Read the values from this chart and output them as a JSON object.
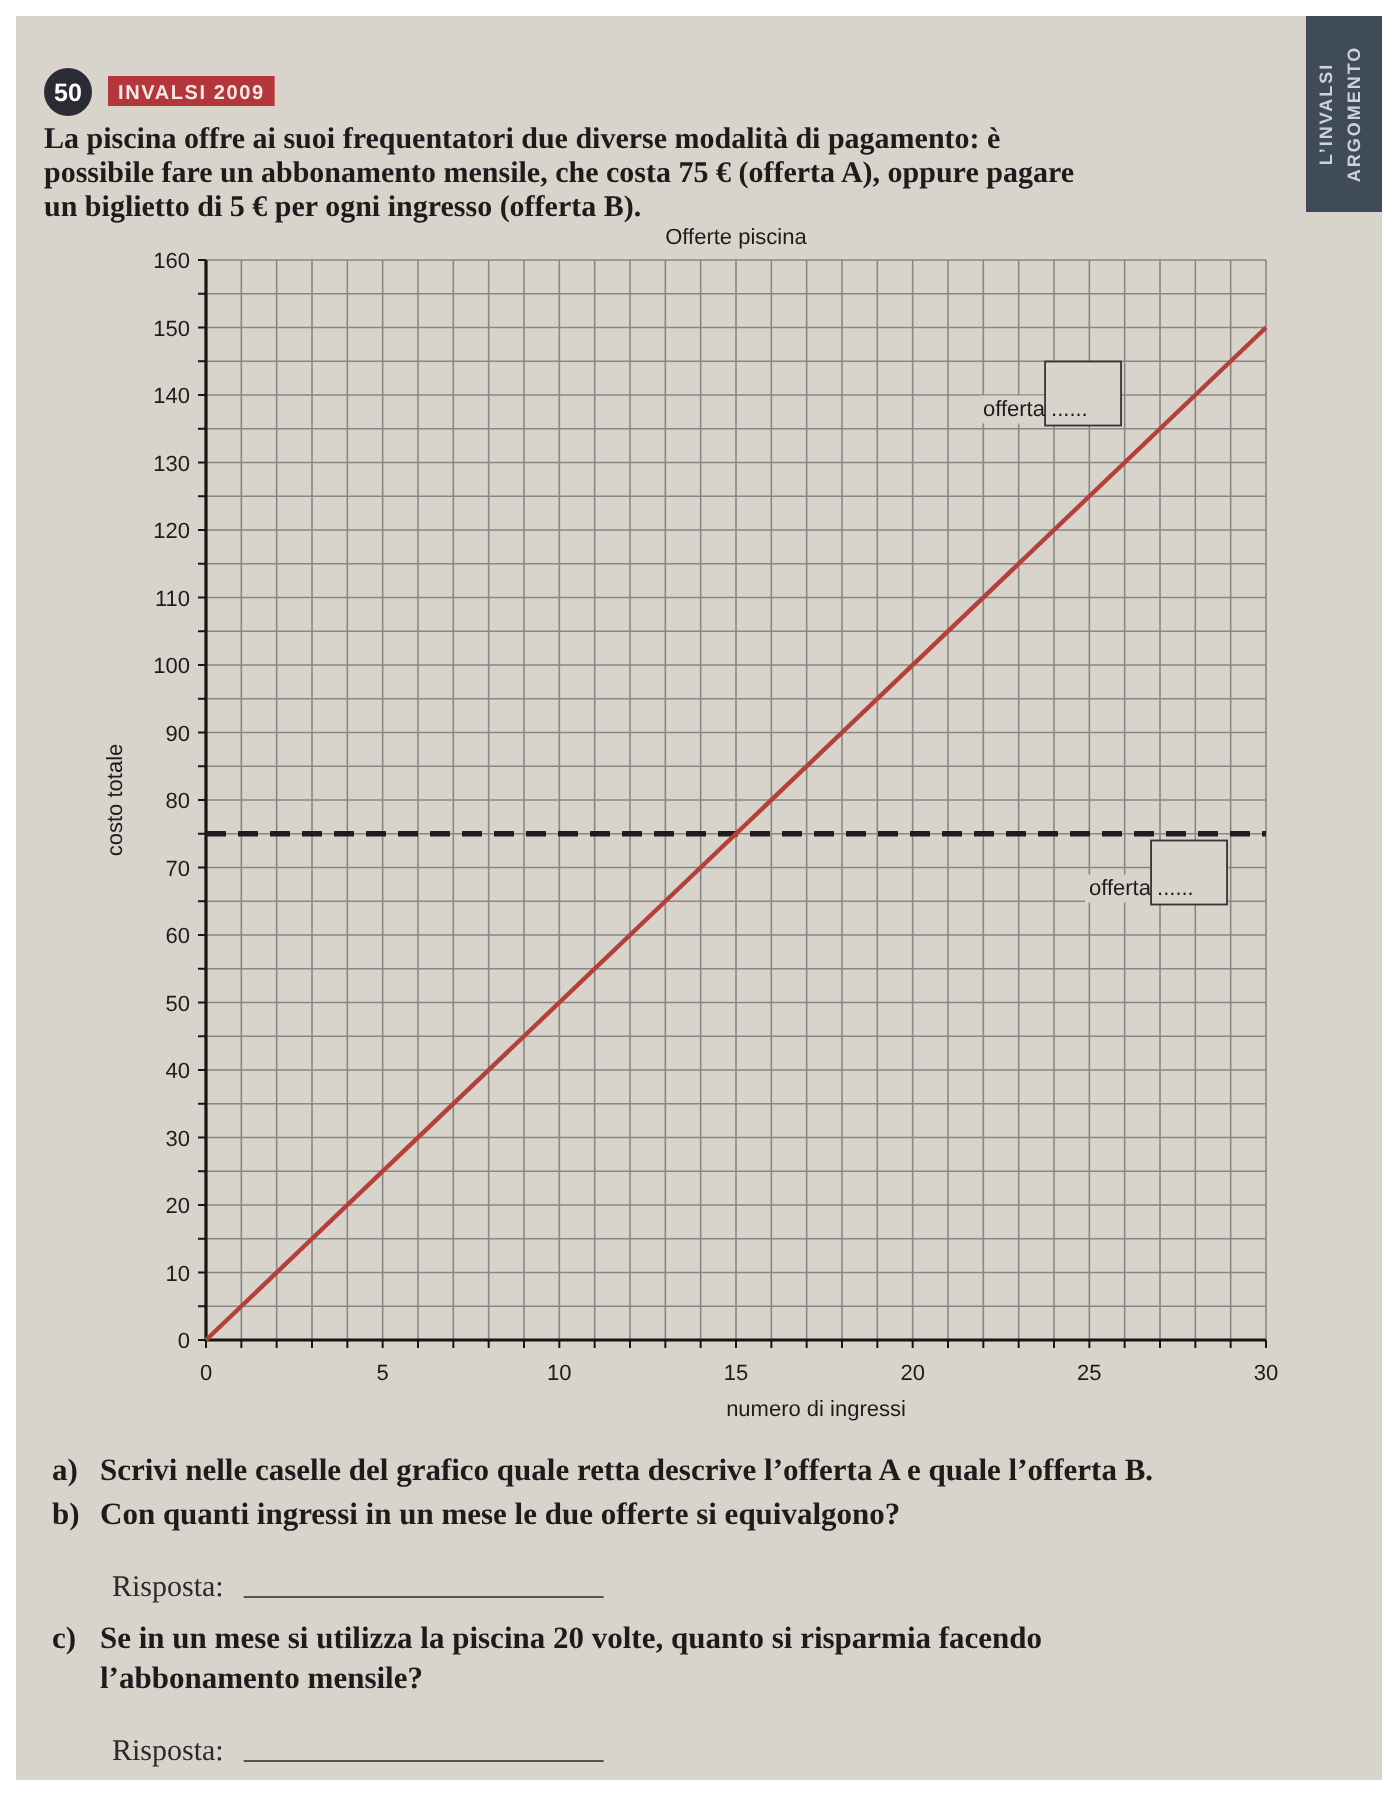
{
  "chart_data": {
    "type": "line",
    "title": "Offerte piscina",
    "xlabel": "numero di ingressi",
    "ylabel": "costo totale",
    "series": [
      {
        "color": "#b5403a",
        "x": [
          0,
          30
        ],
        "values": [
          0,
          150
        ]
      }
    ],
    "ref_lines": [
      {
        "axis": "y",
        "value": 75,
        "color": "#1e1e1e",
        "line_style": "dashed"
      }
    ],
    "line_style": "solid",
    "xlim": [
      0,
      30
    ],
    "ylim": [
      0,
      160
    ],
    "xticks": [
      0,
      {
        "value": 1,
        "label": null
      },
      {
        "value": 2,
        "label": null
      },
      {
        "value": 3,
        "label": null
      },
      {
        "value": 4,
        "label": null
      },
      5,
      {
        "value": 6,
        "label": null
      },
      {
        "value": 7,
        "label": null
      },
      {
        "value": 8,
        "label": null
      },
      {
        "value": 9,
        "label": null
      },
      10,
      {
        "value": 11,
        "label": null
      },
      {
        "value": 12,
        "label": null
      },
      {
        "value": 13,
        "label": null
      },
      {
        "value": 14,
        "label": null
      },
      15,
      {
        "value": 16,
        "label": null
      },
      {
        "value": 17,
        "label": null
      },
      {
        "value": 18,
        "label": null
      },
      {
        "value": 19,
        "label": null
      },
      20,
      {
        "value": 21,
        "label": null
      },
      {
        "value": 22,
        "label": null
      },
      {
        "value": 23,
        "label": null
      },
      {
        "value": 24,
        "label": null
      },
      25,
      {
        "value": 26,
        "label": null
      },
      {
        "value": 27,
        "label": null
      },
      {
        "value": 28,
        "label": null
      },
      {
        "value": 29,
        "label": null
      },
      30
    ],
    "yticks": [
      0,
      {
        "value": 5,
        "label": null
      },
      10,
      {
        "value": 15,
        "label": null
      },
      20,
      {
        "value": 25,
        "label": null
      },
      30,
      {
        "value": 35,
        "label": null
      },
      40,
      {
        "value": 45,
        "label": null
      },
      50,
      {
        "value": 55,
        "label": null
      },
      60,
      {
        "value": 65,
        "label": null
      },
      70,
      {
        "value": 75,
        "label": null
      },
      80,
      {
        "value": 85,
        "label": null
      },
      90,
      {
        "value": 95,
        "label": null
      },
      100,
      {
        "value": 105,
        "label": null
      },
      110,
      {
        "value": 115,
        "label": null
      },
      120,
      {
        "value": 125,
        "label": null
      },
      130,
      {
        "value": 135,
        "label": null
      },
      140,
      {
        "value": 145,
        "label": null
      },
      150,
      {
        "value": 155,
        "label": null
      },
      160
    ],
    "grid": true,
    "annotations": [
      "50",
      "INVALSI 2009",
      "La piscina offre ai suoi frequentatori due diverse modalità di pagamento: è possibile fare un abbonamento mensile, che costa 75 € (offerta A), oppure pagare un biglietto di 5 € per ogni ingresso (offerta B).",
      "L’INVALSI",
      "ARGOMENTO",
      "offerta ......",
      "offerta ......",
      "a) Scrivi nelle caselle del grafico quale retta descrive l’offerta A e quale l’offerta B.",
      "b) Con quanti ingressi in un mese le due offerte si equivalgono?",
      "Risposta:",
      "c) Se in un mese si utilizza la piscina 20 volte, quanto si risparmia facendo l’abbonamento mensile?",
      "Risposta:"
    ]
  }
}
